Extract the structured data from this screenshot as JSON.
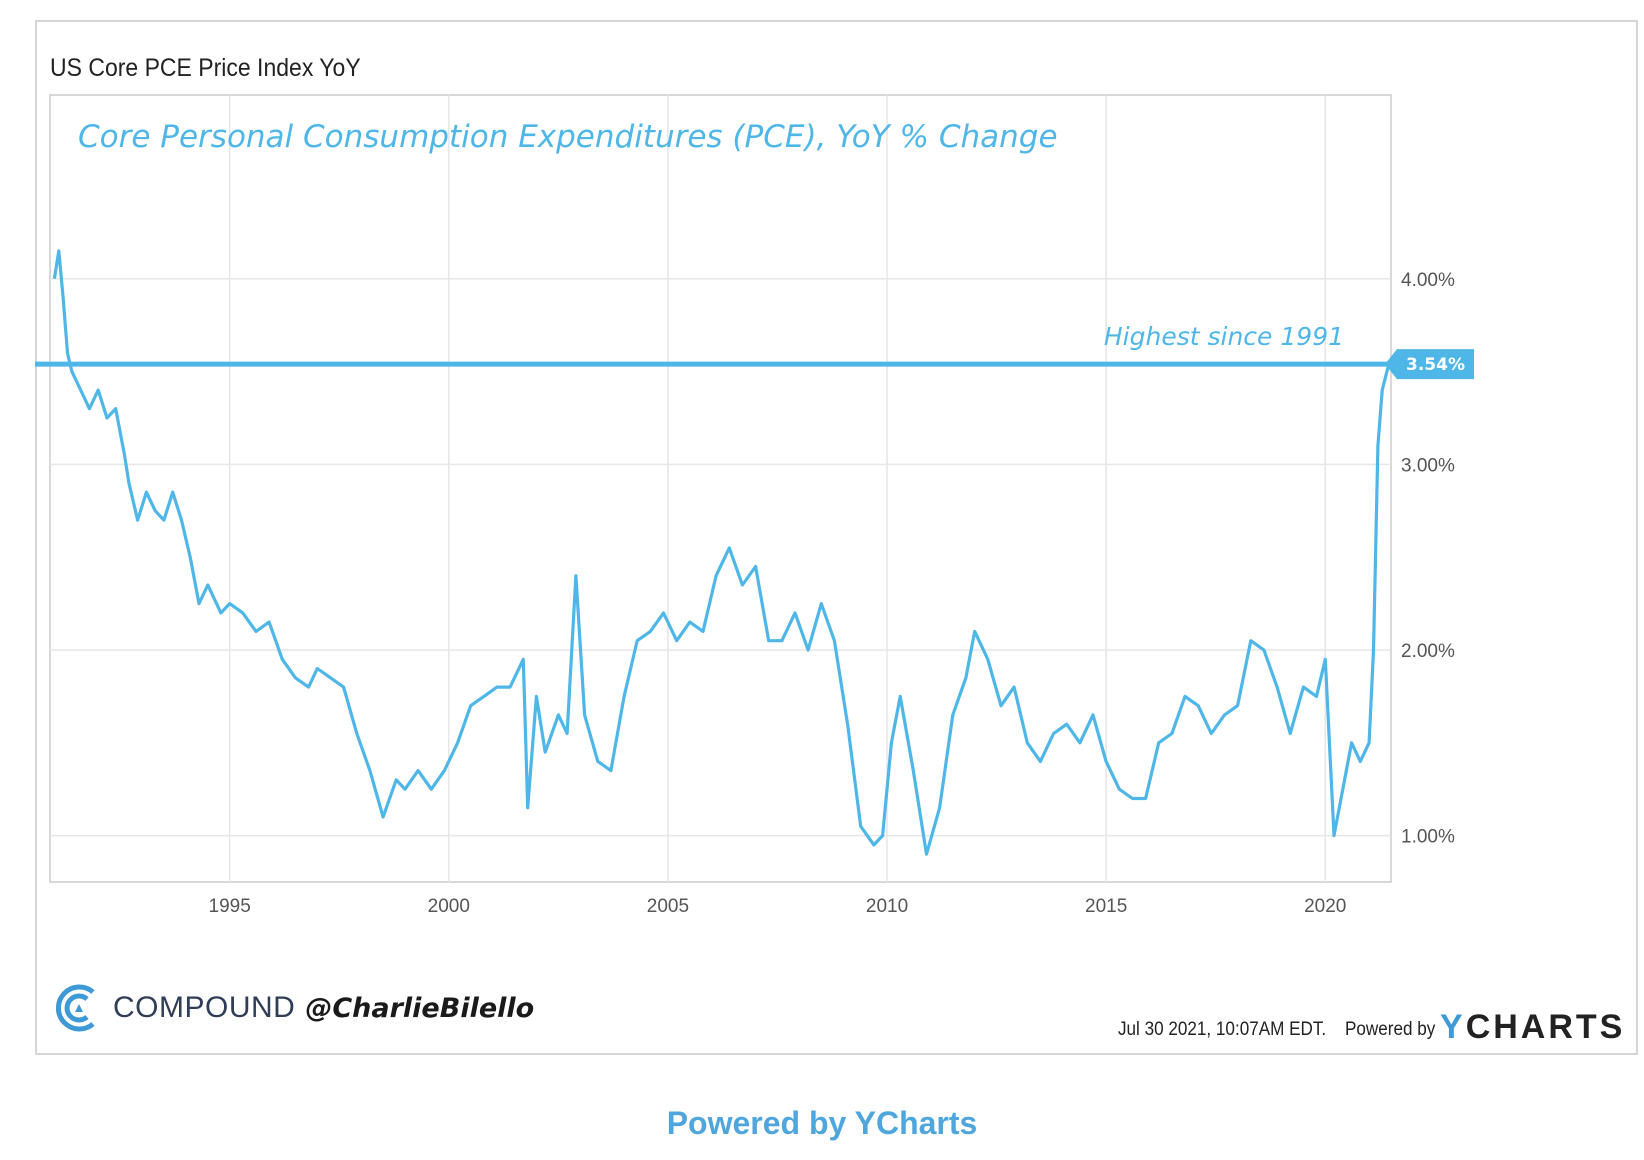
{
  "chart_data": {
    "type": "line",
    "title": "US Core PCE Price Index YoY",
    "subtitle": "Core Personal Consumption Expenditures (PCE), YoY % Change",
    "annotation": "Highest since 1991",
    "reference_line": {
      "value": 3.54,
      "label": "3.54%"
    },
    "xlim": [
      1990.9,
      2021.5
    ],
    "ylim": [
      0.75,
      4.99
    ],
    "x_ticks": [
      1995,
      2000,
      2005,
      2010,
      2015,
      2020
    ],
    "x_tick_labels": [
      "1995",
      "2000",
      "2005",
      "2010",
      "2015",
      "2020"
    ],
    "y_ticks": [
      1.0,
      2.0,
      3.0,
      4.0
    ],
    "y_tick_labels": [
      "1.00%",
      "2.00%",
      "3.00%",
      "4.00%"
    ],
    "grid": true,
    "line_color": "#4fb6e8",
    "series": [
      {
        "name": "US Core PCE Price Index YoY",
        "x": [
          1991.0,
          1991.1,
          1991.2,
          1991.3,
          1991.4,
          1991.6,
          1991.8,
          1992.0,
          1992.2,
          1992.4,
          1992.6,
          1992.7,
          1992.9,
          1993.1,
          1993.3,
          1993.5,
          1993.7,
          1993.9,
          1994.1,
          1994.3,
          1994.5,
          1994.8,
          1995.0,
          1995.3,
          1995.6,
          1995.9,
          1996.2,
          1996.5,
          1996.8,
          1997.0,
          1997.3,
          1997.6,
          1997.9,
          1998.2,
          1998.5,
          1998.8,
          1999.0,
          1999.3,
          1999.6,
          1999.9,
          2000.2,
          2000.5,
          2000.8,
          2001.1,
          2001.4,
          2001.7,
          2001.8,
          2002.0,
          2002.2,
          2002.5,
          2002.7,
          2002.9,
          2003.1,
          2003.4,
          2003.7,
          2004.0,
          2004.3,
          2004.6,
          2004.9,
          2005.2,
          2005.5,
          2005.8,
          2006.1,
          2006.4,
          2006.7,
          2007.0,
          2007.3,
          2007.6,
          2007.9,
          2008.2,
          2008.5,
          2008.8,
          2009.1,
          2009.4,
          2009.7,
          2009.9,
          2010.1,
          2010.3,
          2010.6,
          2010.9,
          2011.2,
          2011.5,
          2011.8,
          2012.0,
          2012.3,
          2012.6,
          2012.9,
          2013.2,
          2013.5,
          2013.8,
          2014.1,
          2014.4,
          2014.7,
          2015.0,
          2015.3,
          2015.6,
          2015.9,
          2016.2,
          2016.5,
          2016.8,
          2017.1,
          2017.4,
          2017.7,
          2018.0,
          2018.3,
          2018.6,
          2018.9,
          2019.2,
          2019.5,
          2019.8,
          2020.0,
          2020.2,
          2020.4,
          2020.6,
          2020.8,
          2021.0,
          2021.1,
          2021.2,
          2021.3,
          2021.45
        ],
        "values": [
          4.0,
          4.15,
          3.9,
          3.6,
          3.5,
          3.4,
          3.3,
          3.4,
          3.25,
          3.3,
          3.05,
          2.9,
          2.7,
          2.85,
          2.75,
          2.7,
          2.85,
          2.7,
          2.5,
          2.25,
          2.35,
          2.2,
          2.25,
          2.2,
          2.1,
          2.15,
          1.95,
          1.85,
          1.8,
          1.9,
          1.85,
          1.8,
          1.55,
          1.35,
          1.1,
          1.3,
          1.25,
          1.35,
          1.25,
          1.35,
          1.5,
          1.7,
          1.75,
          1.8,
          1.8,
          1.95,
          1.15,
          1.75,
          1.45,
          1.65,
          1.55,
          2.4,
          1.65,
          1.4,
          1.35,
          1.75,
          2.05,
          2.1,
          2.2,
          2.05,
          2.15,
          2.1,
          2.4,
          2.55,
          2.35,
          2.45,
          2.05,
          2.05,
          2.2,
          2.0,
          2.25,
          2.05,
          1.6,
          1.05,
          0.95,
          1.0,
          1.5,
          1.75,
          1.35,
          0.9,
          1.15,
          1.65,
          1.85,
          2.1,
          1.95,
          1.7,
          1.8,
          1.5,
          1.4,
          1.55,
          1.6,
          1.5,
          1.65,
          1.4,
          1.25,
          1.2,
          1.2,
          1.5,
          1.55,
          1.75,
          1.7,
          1.55,
          1.65,
          1.7,
          2.05,
          2.0,
          1.8,
          1.55,
          1.8,
          1.75,
          1.95,
          1.0,
          1.25,
          1.5,
          1.4,
          1.5,
          2.0,
          3.1,
          3.4,
          3.54
        ]
      }
    ]
  },
  "footer": {
    "brand_name": "COMPOUND",
    "brand_handle": "@CharlieBilello",
    "timestamp": "Jul 30 2021, 10:07AM EDT.",
    "powered_by": "Powered by",
    "ycharts_y": "Y",
    "ycharts_rest": "CHARTS",
    "bottom_link": "Powered by YCharts"
  },
  "colors": {
    "line": "#4fb6e8",
    "grid": "#e6e6e6",
    "brand": "#3d9ad6"
  }
}
